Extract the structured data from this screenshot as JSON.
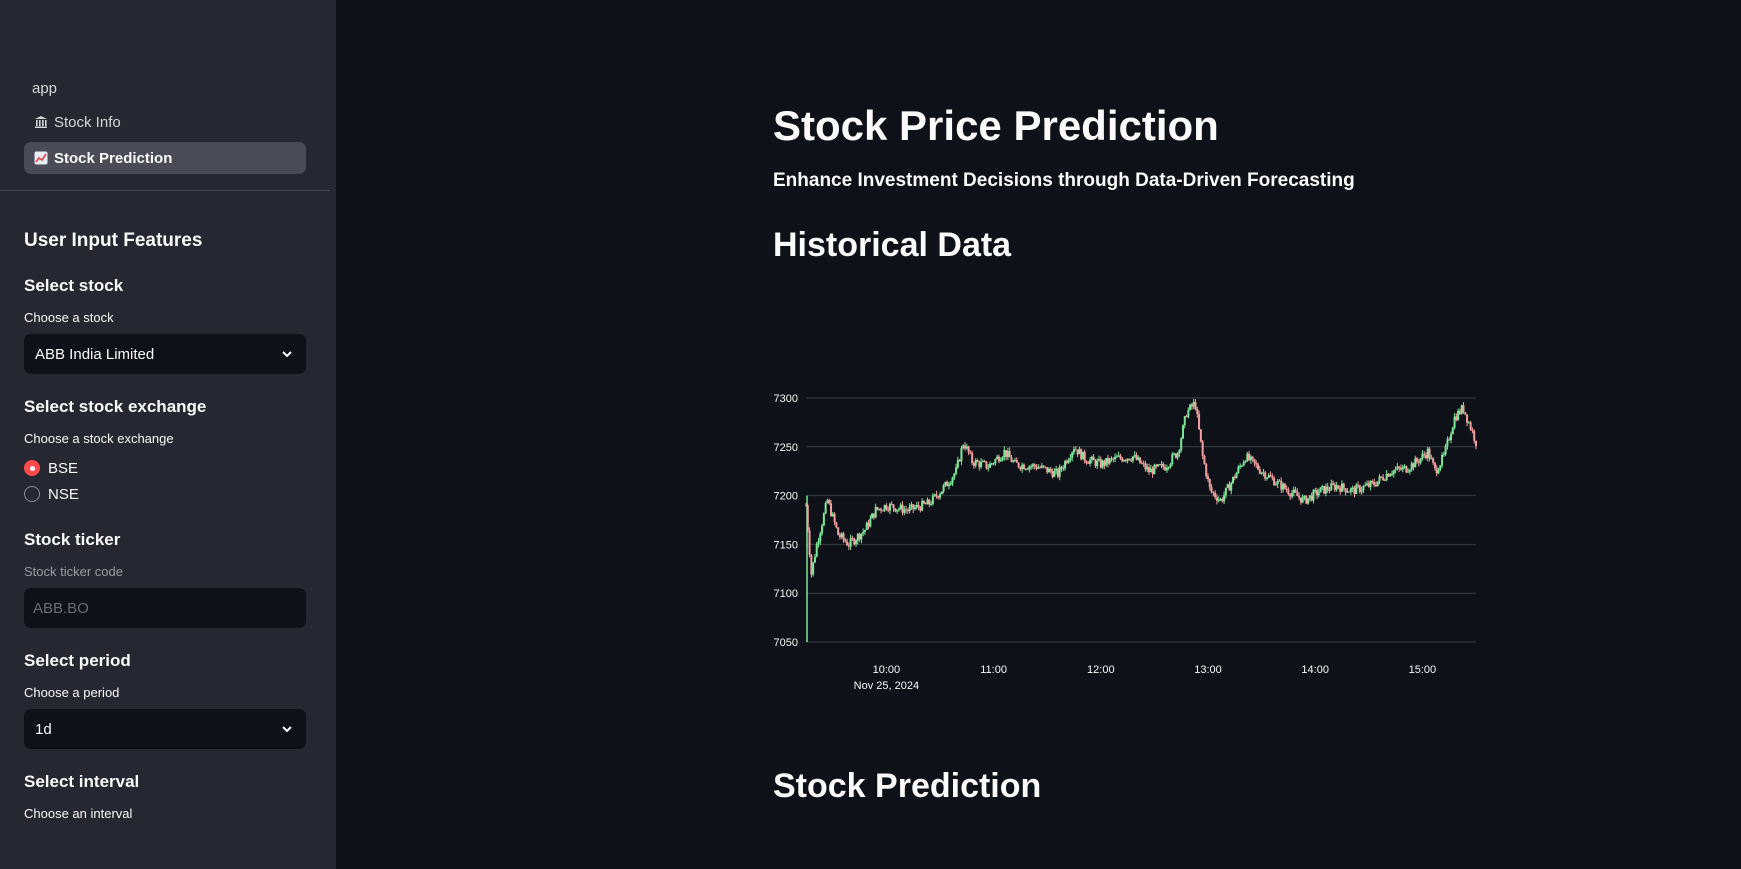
{
  "sidebar": {
    "nav": {
      "app_label": "app",
      "items": [
        {
          "label": "Stock Info",
          "icon": "bank-icon",
          "active": false
        },
        {
          "label": "Stock Prediction",
          "icon": "chart-increasing-icon",
          "active": true
        }
      ]
    },
    "section_title": "User Input Features",
    "stock": {
      "heading": "Select stock",
      "label": "Choose a stock",
      "value": "ABB India Limited"
    },
    "exchange": {
      "heading": "Select stock exchange",
      "label": "Choose a stock exchange",
      "options": [
        {
          "label": "BSE",
          "selected": true
        },
        {
          "label": "NSE",
          "selected": false
        }
      ]
    },
    "ticker": {
      "heading": "Stock ticker",
      "label": "Stock ticker code",
      "placeholder": "ABB.BO"
    },
    "period": {
      "heading": "Select period",
      "label": "Choose a period",
      "value": "1d"
    },
    "interval": {
      "heading": "Select interval",
      "label": "Choose an interval"
    }
  },
  "main": {
    "title": "Stock Price Prediction",
    "subtitle": "Enhance Investment Decisions through Data-Driven Forecasting",
    "historical_heading": "Historical Data",
    "prediction_heading": "Stock Prediction"
  },
  "colors": {
    "up": "#7ee89a",
    "down": "#f2a0a0",
    "accent": "#ff4b4b"
  },
  "chart_data": {
    "type": "candlestick",
    "date_label": "Nov 25, 2024",
    "yticks": [
      7050,
      7100,
      7150,
      7200,
      7250,
      7300
    ],
    "ylim": [
      7050,
      7300
    ],
    "xticks": [
      "10:00",
      "11:00",
      "12:00",
      "13:00",
      "14:00",
      "15:00"
    ],
    "x_start_time": "09:15",
    "x_end_time": "15:30",
    "grid": true,
    "close_path": [
      [
        9.25,
        7190
      ],
      [
        9.3,
        7120
      ],
      [
        9.35,
        7150
      ],
      [
        9.45,
        7195
      ],
      [
        9.55,
        7160
      ],
      [
        9.65,
        7150
      ],
      [
        9.8,
        7165
      ],
      [
        9.9,
        7185
      ],
      [
        10.0,
        7190
      ],
      [
        10.2,
        7185
      ],
      [
        10.4,
        7192
      ],
      [
        10.55,
        7210
      ],
      [
        10.65,
        7225
      ],
      [
        10.72,
        7255
      ],
      [
        10.8,
        7235
      ],
      [
        10.95,
        7230
      ],
      [
        11.1,
        7245
      ],
      [
        11.2,
        7232
      ],
      [
        11.4,
        7230
      ],
      [
        11.6,
        7222
      ],
      [
        11.75,
        7250
      ],
      [
        11.85,
        7238
      ],
      [
        12.0,
        7232
      ],
      [
        12.15,
        7238
      ],
      [
        12.3,
        7240
      ],
      [
        12.45,
        7225
      ],
      [
        12.6,
        7230
      ],
      [
        12.72,
        7245
      ],
      [
        12.8,
        7285
      ],
      [
        12.88,
        7295
      ],
      [
        12.95,
        7240
      ],
      [
        13.02,
        7205
      ],
      [
        13.12,
        7195
      ],
      [
        13.2,
        7210
      ],
      [
        13.35,
        7240
      ],
      [
        13.5,
        7225
      ],
      [
        13.62,
        7215
      ],
      [
        13.75,
        7205
      ],
      [
        13.9,
        7195
      ],
      [
        14.05,
        7205
      ],
      [
        14.2,
        7210
      ],
      [
        14.35,
        7205
      ],
      [
        14.55,
        7212
      ],
      [
        14.7,
        7225
      ],
      [
        14.85,
        7228
      ],
      [
        14.95,
        7235
      ],
      [
        15.05,
        7245
      ],
      [
        15.12,
        7225
      ],
      [
        15.2,
        7240
      ],
      [
        15.3,
        7280
      ],
      [
        15.38,
        7290
      ],
      [
        15.45,
        7270
      ],
      [
        15.5,
        7255
      ]
    ]
  }
}
